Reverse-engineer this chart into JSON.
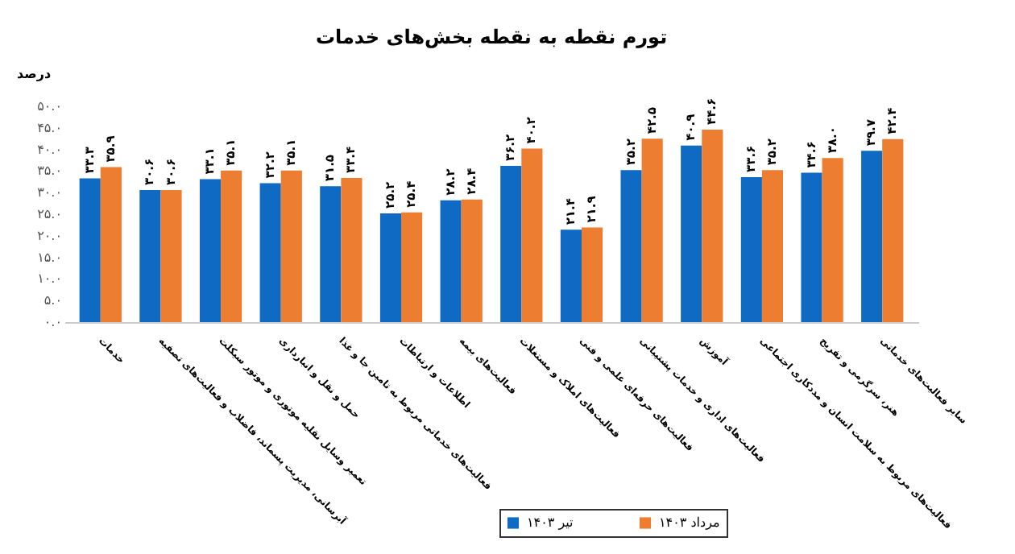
{
  "chart_data": {
    "type": "bar",
    "title": "تورم نقطه به نقطه بخش‌های خدمات",
    "ylabel": "درصد",
    "categories": [
      "خدمات",
      "آبرسانی، مدیریت پسماند، فاضلاب و فعالیت‌های تصفیه",
      "تعمیر وسایل نقلیه موتوری و موتور سیکلت",
      "حمل و نقل و انبارداری",
      "فعالیت‌های خدماتی مربوط به تامین جا و غذا",
      "اطلاعات و ارتباطات",
      "فعالیت‌های بیمه",
      "فعالیت‌های املاک و مستغلات",
      "فعالیت‌های حرفه‌ای علمی و فنی",
      "فعالیت‌های اداری و خدمات پشتیبانی",
      "آموزش",
      "فعالیت‌های مربوط به سلامت انسان و مددکاری اجتماعی",
      "هنر، سرگرمی و تفریح",
      "سایر فعالیت‌های خدماتی"
    ],
    "series": [
      {
        "name": "تیر ۱۴۰۳",
        "color": "#0e6ac2",
        "values": [
          33.3,
          30.6,
          33.1,
          32.2,
          31.5,
          25.2,
          28.2,
          36.2,
          21.4,
          35.2,
          40.9,
          33.6,
          34.6,
          39.7
        ],
        "value_labels": [
          "۳۳.۳",
          "۳۰.۶",
          "۳۳.۱",
          "۳۲.۲",
          "۳۱.۵",
          "۲۵.۲",
          "۲۸.۲",
          "۳۶.۲",
          "۲۱.۴",
          "۳۵.۲",
          "۴۰.۹",
          "۳۳.۶",
          "۳۴.۶",
          "۳۹.۷"
        ]
      },
      {
        "name": "مرداد ۱۴۰۳",
        "color": "#ed7d31",
        "values": [
          35.9,
          30.6,
          35.1,
          35.1,
          33.4,
          25.4,
          28.4,
          40.2,
          21.9,
          42.5,
          44.6,
          35.2,
          38.0,
          42.4
        ],
        "value_labels": [
          "۳۵.۹",
          "۳۰.۶",
          "۳۵.۱",
          "۳۵.۱",
          "۳۳.۴",
          "۲۵.۴",
          "۲۸.۴",
          "۴۰.۲",
          "۲۱.۹",
          "۴۲.۵",
          "۴۴.۶",
          "۳۵.۲",
          "۳۸.۰",
          "۴۲.۴"
        ]
      }
    ],
    "ylim": [
      0,
      50
    ],
    "yticks": [
      {
        "value": 0,
        "label": "۰.۰"
      },
      {
        "value": 5,
        "label": "۵.۰"
      },
      {
        "value": 10,
        "label": "۱۰.۰"
      },
      {
        "value": 15,
        "label": "۱۵.۰"
      },
      {
        "value": 20,
        "label": "۲۰.۰"
      },
      {
        "value": 25,
        "label": "۲۵.۰"
      },
      {
        "value": 30,
        "label": "۳۰.۰"
      },
      {
        "value": 35,
        "label": "۳۵.۰"
      },
      {
        "value": 40,
        "label": "۴۰.۰"
      },
      {
        "value": 45,
        "label": "۴۵.۰"
      },
      {
        "value": 50,
        "label": "۵۰.۰"
      }
    ],
    "grid": false,
    "legend": "bottom"
  }
}
